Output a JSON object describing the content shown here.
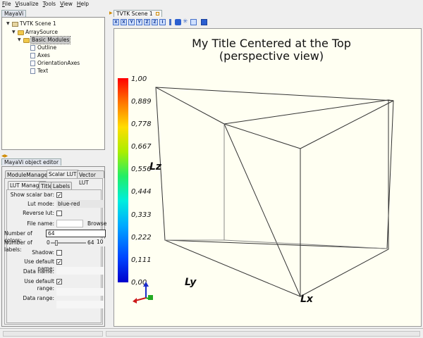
{
  "menu": [
    "File",
    "Visualize",
    "Tools",
    "View",
    "Help"
  ],
  "left_panel": {
    "tab": "MayaVi",
    "tree": [
      {
        "label": "TVTK Scene 1",
        "icon": "scene-icon",
        "level": 0
      },
      {
        "label": "ArraySource",
        "icon": "folder-icon",
        "level": 1
      },
      {
        "label": "Basic Modules",
        "icon": "folder-icon",
        "level": 2,
        "selected": true
      },
      {
        "label": "Outline",
        "icon": "file-icon",
        "level": 3
      },
      {
        "label": "Axes",
        "icon": "file-icon",
        "level": 3
      },
      {
        "label": "OrientationAxes",
        "icon": "file-icon",
        "level": 3
      },
      {
        "label": "Text",
        "icon": "file-icon",
        "level": 3
      }
    ]
  },
  "editor": {
    "tab": "MayaVi object editor",
    "tabs": [
      "ModuleManager",
      "Scalar LUT",
      "Vector LUT"
    ],
    "subtabs": [
      "LUT Manager",
      "Title",
      "Labels"
    ],
    "fields": {
      "show_scalar_bar": "Show scalar bar:",
      "lut_mode": "Lut mode:",
      "lut_mode_value": "blue-red",
      "reverse_lut": "Reverse lut:",
      "file_name": "File name:",
      "browse": "Browse",
      "number_of_colors": "Number of colors:",
      "number_of_colors_value": "64",
      "number_of_labels": "Number of labels:",
      "labels_min": "0",
      "labels_max": "64",
      "labels_value": "10",
      "shadow": "Shadow:",
      "use_default_name": "Use default name:",
      "data_name": "Data name:",
      "use_default_range": "Use default range:",
      "data_range": "Data range:"
    }
  },
  "scene": {
    "tab": "TVTK Scene 1",
    "toolbar_icons": [
      "view-x-icon",
      "view-x-icon",
      "view-y-icon",
      "view-y-icon",
      "view-z-icon",
      "view-z-icon",
      "isometric-icon",
      "parallel-icon",
      "light-icon",
      "fullscreen-icon",
      "save-icon"
    ],
    "toolbar_glyphs": [
      "X",
      "X",
      "Y",
      "Y",
      "Z",
      "Z",
      "I",
      "",
      "",
      "",
      ""
    ],
    "title_line1": "My Title Centered at the Top",
    "title_line2": "(perspective view)",
    "axis_labels": {
      "x": "Lx",
      "y": "Ly",
      "z": "Lz"
    },
    "colorbar_labels": [
      "1,00",
      "0,889",
      "0,778",
      "0,667",
      "0,556",
      "0,444",
      "0,333",
      "0,222",
      "0,111",
      "0,00"
    ]
  }
}
